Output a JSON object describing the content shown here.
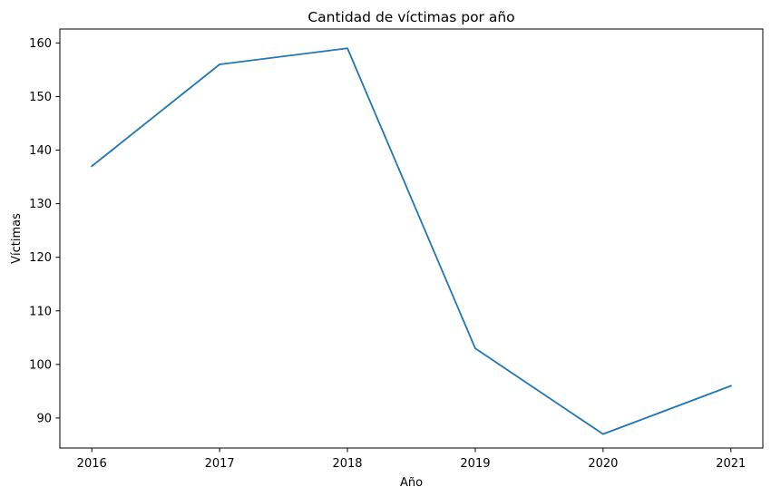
{
  "chart_data": {
    "type": "line",
    "title": "Cantidad de víctimas por año",
    "xlabel": "Año",
    "ylabel": "Víctimas",
    "x": [
      2016,
      2017,
      2018,
      2019,
      2020,
      2021
    ],
    "x_tick_labels": [
      "2016",
      "2017",
      "2018",
      "2019",
      "2020",
      "2021"
    ],
    "y_ticks": [
      90,
      100,
      110,
      120,
      130,
      140,
      150,
      160
    ],
    "y_tick_labels": [
      "90",
      "100",
      "110",
      "120",
      "130",
      "140",
      "150",
      "160"
    ],
    "series": [
      {
        "values": [
          137,
          156,
          159,
          103,
          87,
          96
        ],
        "color": "#1f77b4"
      }
    ],
    "ylim": [
      84.4,
      162.6
    ],
    "xlim": [
      2015.75,
      2021.25
    ],
    "grid": false,
    "legend": "none"
  }
}
